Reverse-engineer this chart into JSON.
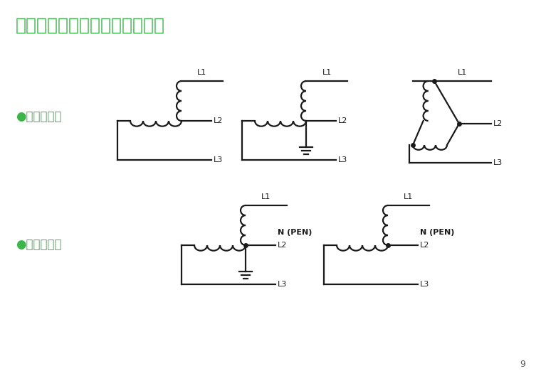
{
  "title": "带电导体系统型式的选择（续）",
  "title_color": "#3cb54a",
  "title_fontsize": 18,
  "label1": "●三相三线制",
  "label2": "●三相四线制",
  "label_color": "#3cb54a",
  "label_fontsize": 12,
  "line_color": "#1a1a1a",
  "bg_color": "#ffffff",
  "page_num": "9"
}
